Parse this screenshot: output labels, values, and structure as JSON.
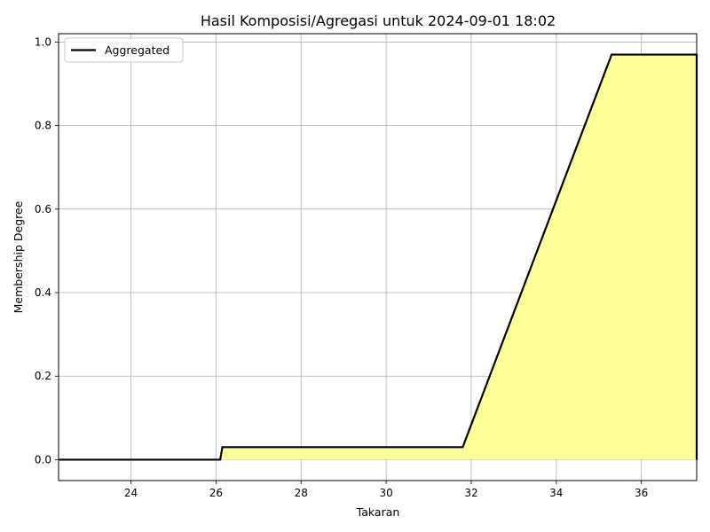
{
  "chart_data": {
    "type": "area",
    "title": "Hasil Komposisi/Agregasi untuk 2024-09-01 18:02",
    "xlabel": "Takaran",
    "ylabel": "Membership Degree",
    "xlim": [
      22.3,
      37.3
    ],
    "ylim": [
      -0.05,
      1.02
    ],
    "xticks": [
      24,
      26,
      28,
      30,
      32,
      34,
      36
    ],
    "yticks": [
      0.0,
      0.2,
      0.4,
      0.6,
      0.8,
      1.0
    ],
    "xtick_labels": [
      "24",
      "26",
      "28",
      "30",
      "32",
      "34",
      "36"
    ],
    "ytick_labels": [
      "0.0",
      "0.2",
      "0.4",
      "0.6",
      "0.8",
      "1.0"
    ],
    "grid": true,
    "legend_position": "top-left",
    "series": [
      {
        "name": "Aggregated",
        "x": [
          22.3,
          26.1,
          26.15,
          31.8,
          35.3,
          37.3,
          37.3
        ],
        "y": [
          0.0,
          0.0,
          0.03,
          0.03,
          0.97,
          0.97,
          0.0
        ],
        "line_color": "#000000",
        "fill_color": "#ffff99"
      }
    ]
  }
}
